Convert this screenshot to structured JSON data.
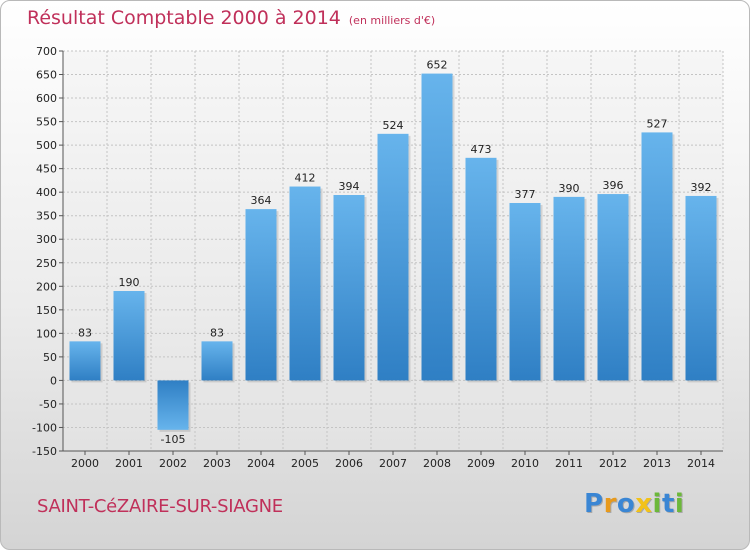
{
  "title": {
    "main": "Résultat Comptable 2000 à 2014",
    "unit": "(en milliers d'€)"
  },
  "commune": "SAINT-CéZAIRE-SUR-SIAGNE",
  "logo": {
    "text": "Proxiti",
    "letters": [
      {
        "ch": "P",
        "color": "#3a86d4"
      },
      {
        "ch": "r",
        "color": "#e89a1c"
      },
      {
        "ch": "o",
        "color": "#3a86d4"
      },
      {
        "ch": "x",
        "color": "#f2c21a"
      },
      {
        "ch": "i",
        "color": "#6cb83a"
      },
      {
        "ch": "t",
        "color": "#3a86d4"
      },
      {
        "ch": "i",
        "color": "#6cb83a"
      }
    ]
  },
  "colors": {
    "bar_light": "#67b4ec",
    "bar_dark": "#2f7fc4",
    "grid": "#c4c4c4",
    "axis_text": "#222222",
    "title": "#c0305a"
  },
  "chart_data": {
    "type": "bar",
    "categories": [
      "2000",
      "2001",
      "2002",
      "2003",
      "2004",
      "2005",
      "2006",
      "2007",
      "2008",
      "2009",
      "2010",
      "2011",
      "2012",
      "2013",
      "2014"
    ],
    "values": [
      83,
      190,
      -105,
      83,
      364,
      412,
      394,
      524,
      652,
      473,
      377,
      390,
      396,
      527,
      392
    ],
    "data_labels": [
      "83",
      "190",
      "-105",
      "83",
      "364",
      "412",
      "394",
      "524",
      "652",
      "473",
      "377",
      "390",
      "396",
      "527",
      "392"
    ],
    "ylim": [
      -150,
      700
    ],
    "yticks": [
      -150,
      -100,
      -50,
      0,
      50,
      100,
      150,
      200,
      250,
      300,
      350,
      400,
      450,
      500,
      550,
      600,
      650,
      700
    ],
    "ytick_labels": [
      "-150",
      "-100",
      "-50",
      "0",
      "50",
      "100",
      "150",
      "200",
      "250",
      "300",
      "350",
      "400",
      "450",
      "500",
      "550",
      "600",
      "650",
      "700"
    ],
    "grid": true,
    "legend": "none"
  }
}
